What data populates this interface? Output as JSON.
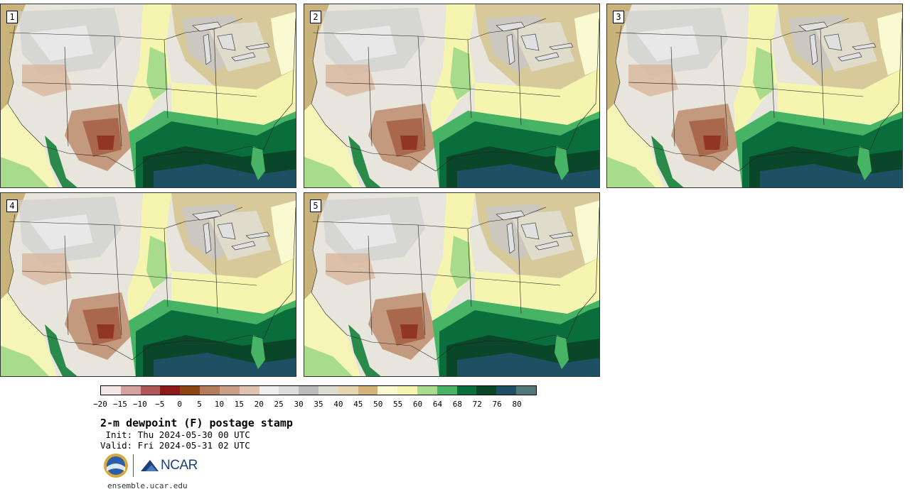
{
  "panels": [
    {
      "label": "1"
    },
    {
      "label": "2"
    },
    {
      "label": "3"
    },
    {
      "label": "4"
    },
    {
      "label": "5"
    }
  ],
  "colorbar": {
    "colors": [
      "#f2e6e6",
      "#d4a0a0",
      "#b05858",
      "#8c1a1a",
      "#8b4513",
      "#b37d5c",
      "#c9a086",
      "#dfc3b0",
      "#eeeeee",
      "#dcdcdc",
      "#bcbcbc",
      "#dcdcd0",
      "#e6d6b0",
      "#d2b478",
      "#fafad2",
      "#f5f5b0",
      "#a8dc8c",
      "#46b464",
      "#0a6e3c",
      "#0a4628",
      "#1e5064",
      "#50787a"
    ],
    "ticks": [
      "−20",
      "−15",
      "−10",
      "−5",
      "0",
      "5",
      "10",
      "15",
      "20",
      "25",
      "30",
      "35",
      "40",
      "45",
      "50",
      "55",
      "60",
      "64",
      "68",
      "72",
      "76",
      "80"
    ]
  },
  "title": "2-m dewpoint (F) postage stamp",
  "init": " Init: Thu 2024-05-30 00 UTC",
  "valid": "Valid: Fri 2024-05-31 02 UTC",
  "logos": {
    "nsf": "NSF",
    "ncar": "NCAR"
  },
  "url": "ensemble.ucar.edu"
}
